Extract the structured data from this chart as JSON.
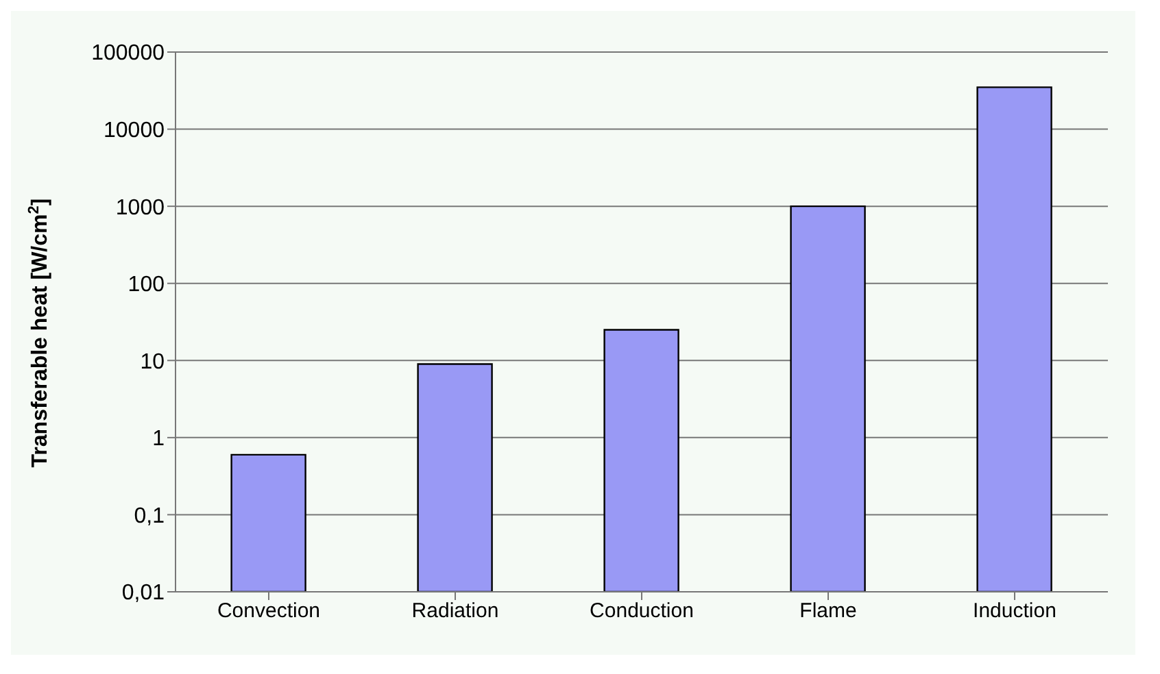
{
  "chart_data": {
    "type": "bar",
    "ylabel": "Transferable heat [W/cm$^{2}$]",
    "categories": [
      "Convection",
      "Radiation",
      "Conduction",
      "Flame",
      "Induction"
    ],
    "values": [
      0.6,
      9,
      25,
      1000,
      35000
    ],
    "color": "#9999f5",
    "log": "y",
    "ylim": [
      0.01,
      100000
    ],
    "yticks": [
      {
        "value": 0.01,
        "label": "0,01"
      },
      {
        "value": 0.1,
        "label": "0,1"
      },
      1,
      10,
      100,
      1000,
      10000,
      100000
    ],
    "grid": "y"
  }
}
